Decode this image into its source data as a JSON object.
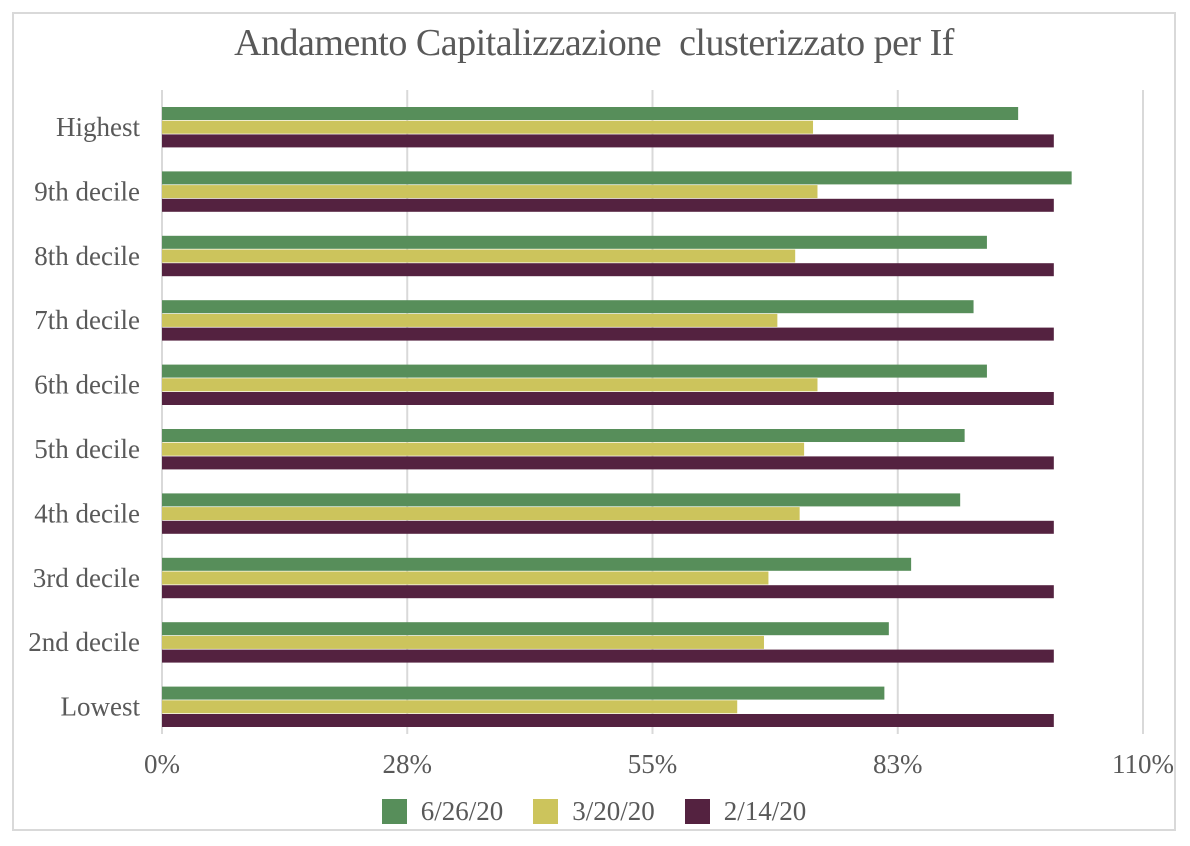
{
  "chart_data": {
    "type": "bar",
    "orientation": "horizontal",
    "title": "Andamento Capitalizzazione  clusterizzato per If",
    "categories": [
      "Highest",
      "9th decile",
      "8th decile",
      "7th decile",
      "6th decile",
      "5th decile",
      "4th decile",
      "3rd decile",
      "2nd decile",
      "Lowest"
    ],
    "series": [
      {
        "name": "6/26/20",
        "color": "#578e5a",
        "values": [
          96,
          102,
          92.5,
          91,
          92.5,
          90,
          89.5,
          84,
          81.5,
          81
        ]
      },
      {
        "name": "3/20/20",
        "color": "#ccc45c",
        "values": [
          73,
          73.5,
          71,
          69,
          73.5,
          72,
          71.5,
          68,
          67.5,
          64.5
        ]
      },
      {
        "name": "2/14/20",
        "color": "#542240",
        "values": [
          100,
          100,
          100,
          100,
          100,
          100,
          100,
          100,
          100,
          100
        ]
      }
    ],
    "x_axis": {
      "tick_labels": [
        "0%",
        "28%",
        "55%",
        "83%",
        "110%"
      ],
      "tick_values": [
        0,
        27.5,
        55,
        82.5,
        110
      ],
      "min": 0,
      "max": 110,
      "unit": "%"
    },
    "legend_position": "bottom",
    "grid": "vertical-gridlines-on"
  },
  "colors": {
    "text": "#595959",
    "gridline": "#d9d9d9",
    "border": "#d9d9d9",
    "background": "#ffffff"
  }
}
